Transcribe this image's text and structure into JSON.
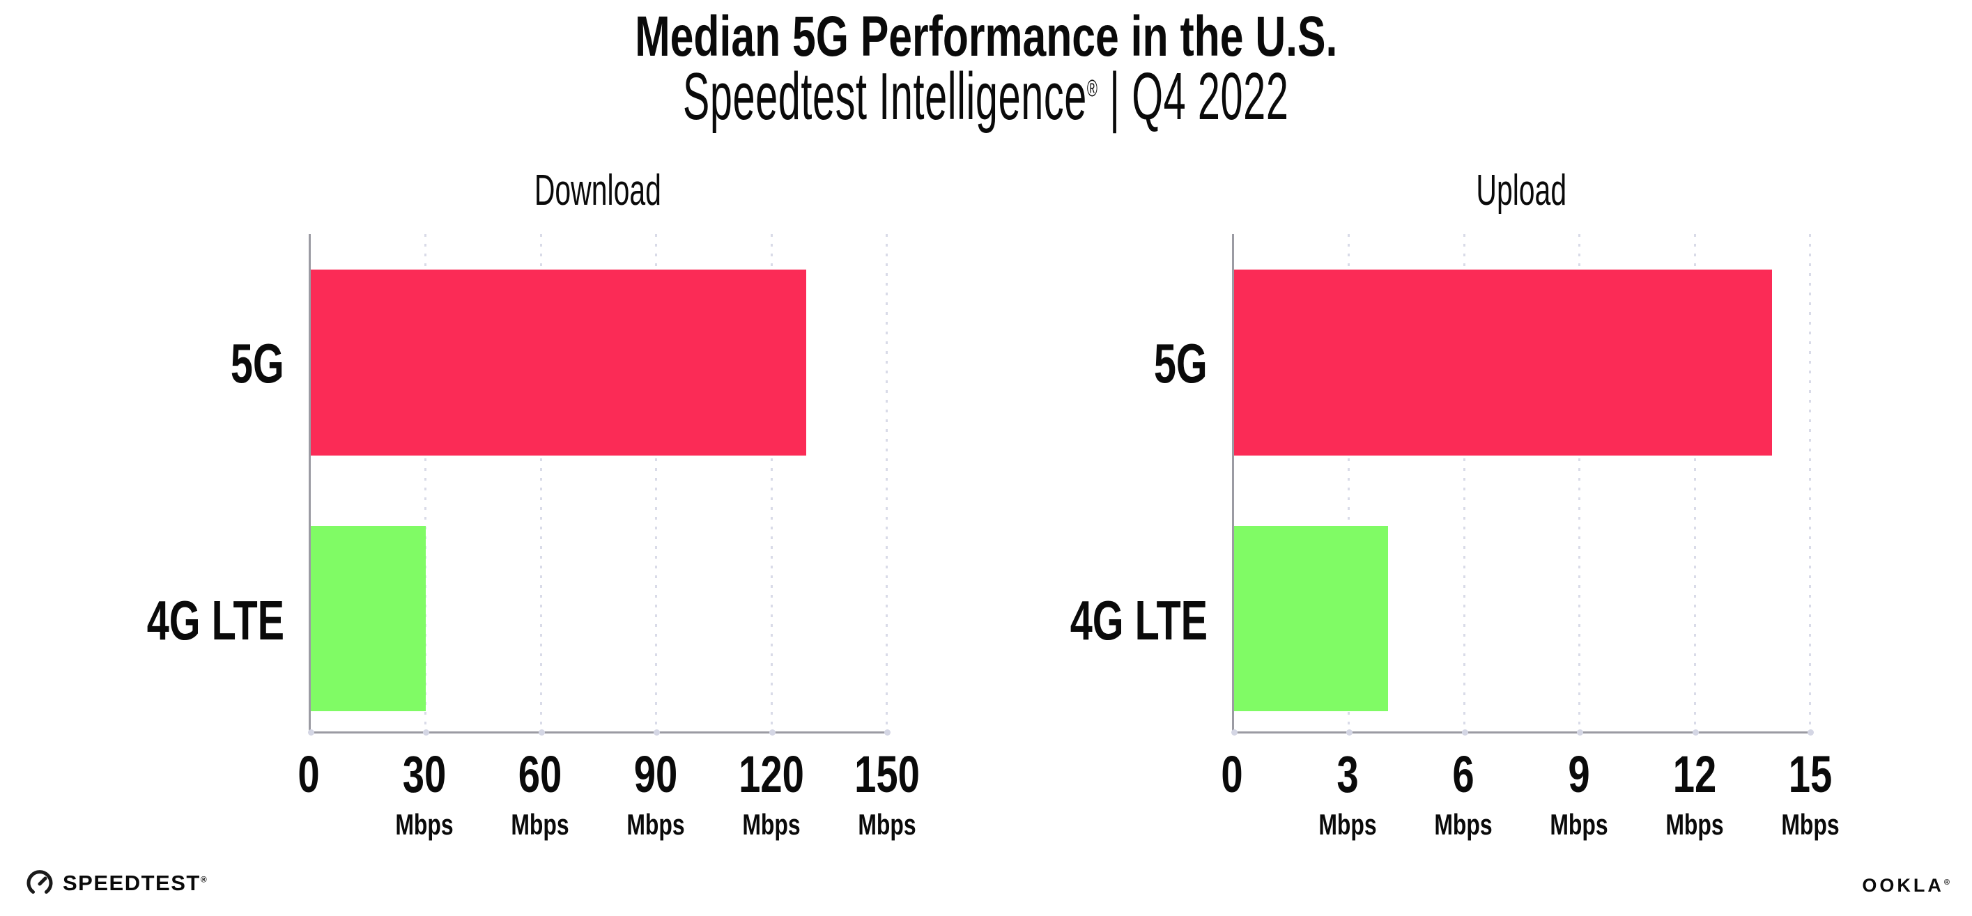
{
  "header": {
    "title": "Median 5G Performance in the U.S.",
    "subtitle_brand": "Speedtest Intelligence",
    "subtitle_reg": "®",
    "subtitle_rest": " | Q4 2022"
  },
  "chart_data": [
    {
      "type": "bar",
      "orientation": "horizontal",
      "title": "Download",
      "categories": [
        "5G",
        "4G LTE"
      ],
      "values": [
        129,
        30
      ],
      "unit": "Mbps",
      "xlim": [
        0,
        150
      ],
      "xticks": [
        0,
        30,
        60,
        90,
        120,
        150
      ],
      "bar_colors": [
        "#fb2b56",
        "#80fb65"
      ],
      "grid": "dotted-vertical-gridlines",
      "legend": "none"
    },
    {
      "type": "bar",
      "orientation": "horizontal",
      "title": "Upload",
      "categories": [
        "5G",
        "4G LTE"
      ],
      "values": [
        14,
        4
      ],
      "unit": "Mbps",
      "xlim": [
        0,
        15
      ],
      "xticks": [
        0,
        3,
        6,
        9,
        12,
        15
      ],
      "bar_colors": [
        "#fb2b56",
        "#80fb65"
      ],
      "grid": "dotted-vertical-gridlines",
      "legend": "none"
    }
  ],
  "footer": {
    "speedtest_label": "SPEEDTEST",
    "speedtest_reg": "®",
    "ookla_label": "OOKLA",
    "ookla_reg": "®"
  },
  "colors": {
    "bar_5g": "#fb2b56",
    "bar_4g_lte": "#80fb65",
    "axis": "#9b9ba3",
    "gridline": "#d9dbe8",
    "text": "#0a0a0a",
    "background": "#ffffff"
  }
}
